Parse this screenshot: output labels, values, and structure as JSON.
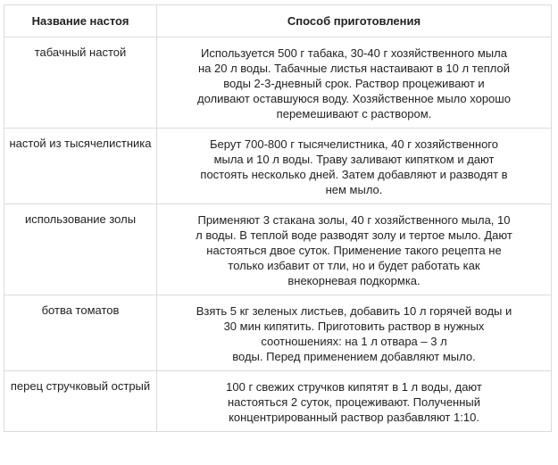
{
  "table": {
    "headers": [
      "Название настоя",
      "Способ приготовления"
    ],
    "rows": [
      {
        "name": "табачный настой",
        "lines": [
          "Используется 500 г табака, 30-40 г хозяйственного мыла",
          "на 20 л воды. Табачные листья настаивают в 10 л теплой",
          "воды 2-3-дневный срок.  Раствор процеживают и",
          "доливают оставшуюся воду. Хозяйственное мыло хорошо",
          "перемешивают с раствором."
        ]
      },
      {
        "name": "настой из тысячелистника",
        "lines": [
          "Берут 700-800 г тысячелистника, 40 г хозяйственного",
          "мыла и 10 л воды. Траву заливают кипятком и дают",
          "постоять несколько дней.  Затем добавляют и разводят в",
          "нем мыло."
        ]
      },
      {
        "name": "использование золы",
        "lines": [
          "Применяют 3 стакана золы, 40 г хозяйственного мыла, 10",
          "л воды. В теплой воде разводят золу и тертое мыло. Дают",
          "настояться двое суток.  Применение такого рецепта не",
          "только избавит от тли, но и будет работать как",
          "внекорневая подкормка."
        ]
      },
      {
        "name": "ботва томатов",
        "lines": [
          "Взять 5 кг зеленых листьев, добавить 10 л горячей воды и",
          "30 мин кипятить. Приготовить раствор в нужных",
          "соотношениях: на 1 л отвара – 3 л",
          "воды. Перед применением добавляют мыло."
        ]
      },
      {
        "name": "перец стручковый острый",
        "lines": [
          "100 г свежих стручков кипятят в 1 л воды, дают",
          "настояться 2 суток, процеживают. Полученный",
          "концентрированный раствор разбавляют 1:10."
        ]
      }
    ]
  }
}
